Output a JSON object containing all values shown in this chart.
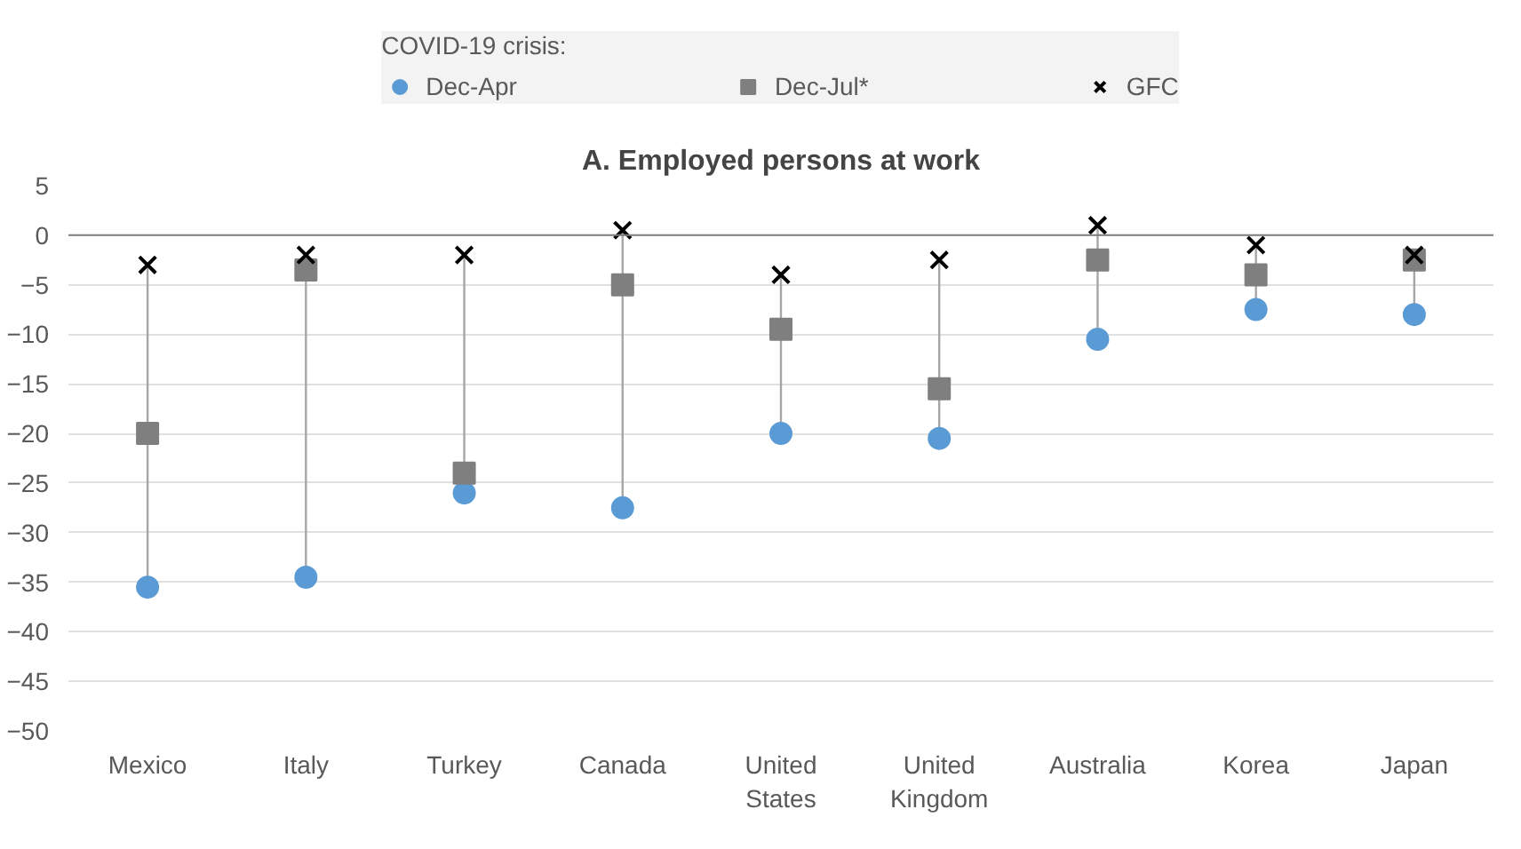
{
  "chart_data": {
    "type": "scatter",
    "title": "A. Employed persons at work",
    "categories": [
      "Mexico",
      "Italy",
      "Turkey",
      "Canada",
      "United\nStates",
      "United\nKingdom",
      "Australia",
      "Korea",
      "Japan"
    ],
    "legend_title": "COVID-19 crisis:",
    "series": [
      {
        "name": "Dec-Apr",
        "color": "#5b9bd5",
        "marker": "circle",
        "values": [
          -35.5,
          -34.5,
          -26,
          -27.5,
          -20,
          -20.5,
          -10.5,
          -7.5,
          -8
        ]
      },
      {
        "name": "Dec-Jul*",
        "color": "#7f7f7f",
        "marker": "square",
        "values": [
          -20,
          -3.5,
          -24,
          -5,
          -9.5,
          -15.5,
          -2.5,
          -4,
          -2.5
        ]
      },
      {
        "name": "GFC",
        "color": "#000000",
        "marker": "cross",
        "values": [
          -3,
          -2,
          -2,
          0.5,
          -4,
          -2.5,
          1,
          -1,
          -2
        ]
      }
    ],
    "ylim": [
      -50,
      5
    ],
    "yticks": [
      -50,
      -45,
      -40,
      -35,
      -30,
      -25,
      -20,
      -15,
      -10,
      -5,
      0,
      5
    ],
    "grid": "y",
    "legend": "top"
  }
}
